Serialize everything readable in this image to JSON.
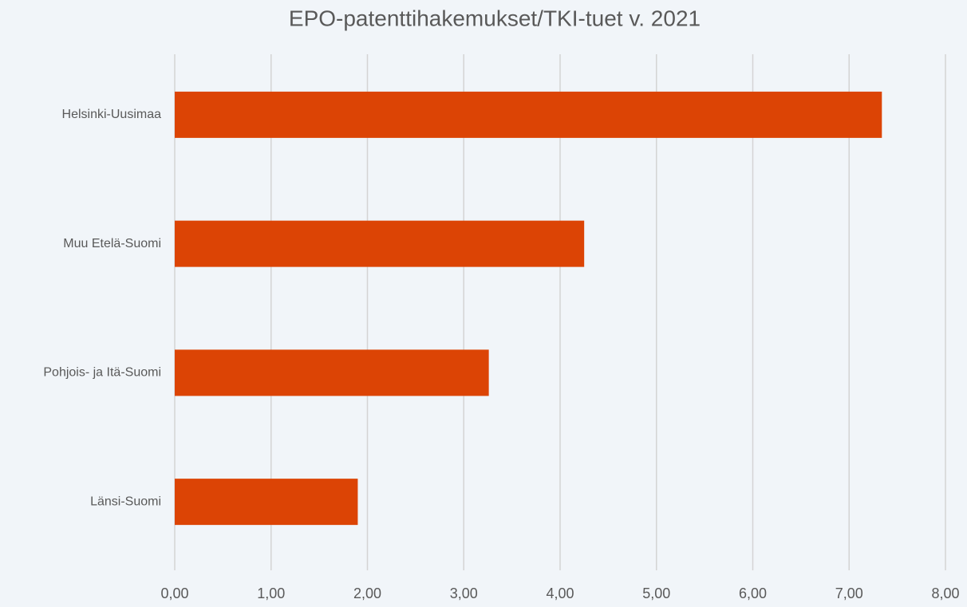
{
  "chart_data": {
    "type": "bar",
    "orientation": "horizontal",
    "title": "EPO-patenttihakemukset/TKI-tuet v. 2021",
    "categories": [
      "Helsinki-Uusimaa",
      "Muu Etelä-Suomi",
      "Pohjois- ja Itä-Suomi",
      "Länsi-Suomi"
    ],
    "values": [
      7.34,
      4.25,
      3.26,
      1.9
    ],
    "color": "#dc4405",
    "xlim": [
      0,
      8
    ],
    "xticks": [
      {
        "value": 0,
        "label": "0,00"
      },
      {
        "value": 1,
        "label": "1,00"
      },
      {
        "value": 2,
        "label": "2,00"
      },
      {
        "value": 3,
        "label": "3,00"
      },
      {
        "value": 4,
        "label": "4,00"
      },
      {
        "value": 5,
        "label": "5,00"
      },
      {
        "value": 6,
        "label": "6,00"
      },
      {
        "value": 7,
        "label": "7,00"
      },
      {
        "value": 8,
        "label": "8,00"
      }
    ],
    "grid": true
  }
}
